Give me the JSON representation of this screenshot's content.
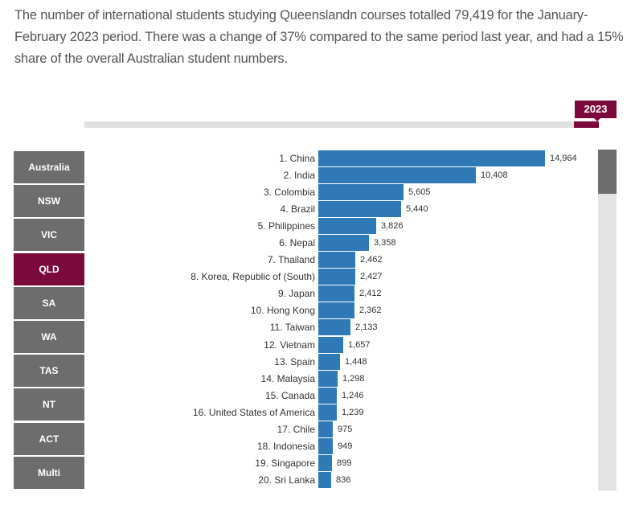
{
  "intro": {
    "text": "The number of international students studying Queenslandn courses totalled 79,419 for the January-February 2023 period. There was a change of 37% compared to the same period last year, and had a 15% share of the overall Australian student numbers."
  },
  "timeline": {
    "selected_year": "2023"
  },
  "sidebar": {
    "items": [
      {
        "label": "Australia",
        "active": false
      },
      {
        "label": "NSW",
        "active": false
      },
      {
        "label": "VIC",
        "active": false
      },
      {
        "label": "QLD",
        "active": true
      },
      {
        "label": "SA",
        "active": false
      },
      {
        "label": "WA",
        "active": false
      },
      {
        "label": "TAS",
        "active": false
      },
      {
        "label": "NT",
        "active": false
      },
      {
        "label": "ACT",
        "active": false
      },
      {
        "label": "Multi",
        "active": false
      }
    ]
  },
  "colors": {
    "bar": "#2f7ab6",
    "accent": "#7b0a3c",
    "button": "#6d6d6d"
  },
  "chart_data": {
    "type": "bar",
    "orientation": "horizontal",
    "title": "",
    "xlabel": "",
    "ylabel": "",
    "categories": [
      "1. China",
      "2. India",
      "3. Colombia",
      "4. Brazil",
      "5. Philippines",
      "6. Nepal",
      "7. Thailand",
      "8. Korea, Republic of (South)",
      "9. Japan",
      "10. Hong Kong",
      "11. Taiwan",
      "12. Vietnam",
      "13. Spain",
      "14. Malaysia",
      "15. Canada",
      "16. United States of America",
      "17. Chile",
      "18. Indonesia",
      "19. Singapore",
      "20. Sri Lanka"
    ],
    "values": [
      14964,
      10408,
      5605,
      5440,
      3826,
      3358,
      2462,
      2427,
      2412,
      2362,
      2133,
      1657,
      1448,
      1298,
      1246,
      1239,
      975,
      949,
      899,
      836
    ],
    "value_labels": [
      "14,964",
      "10,408",
      "5,605",
      "5,440",
      "3,826",
      "3,358",
      "2,462",
      "2,427",
      "2,412",
      "2,362",
      "2,133",
      "1,657",
      "1,448",
      "1,298",
      "1,246",
      "1,239",
      "975",
      "949",
      "899",
      "836"
    ],
    "grid": false,
    "legend": null
  }
}
